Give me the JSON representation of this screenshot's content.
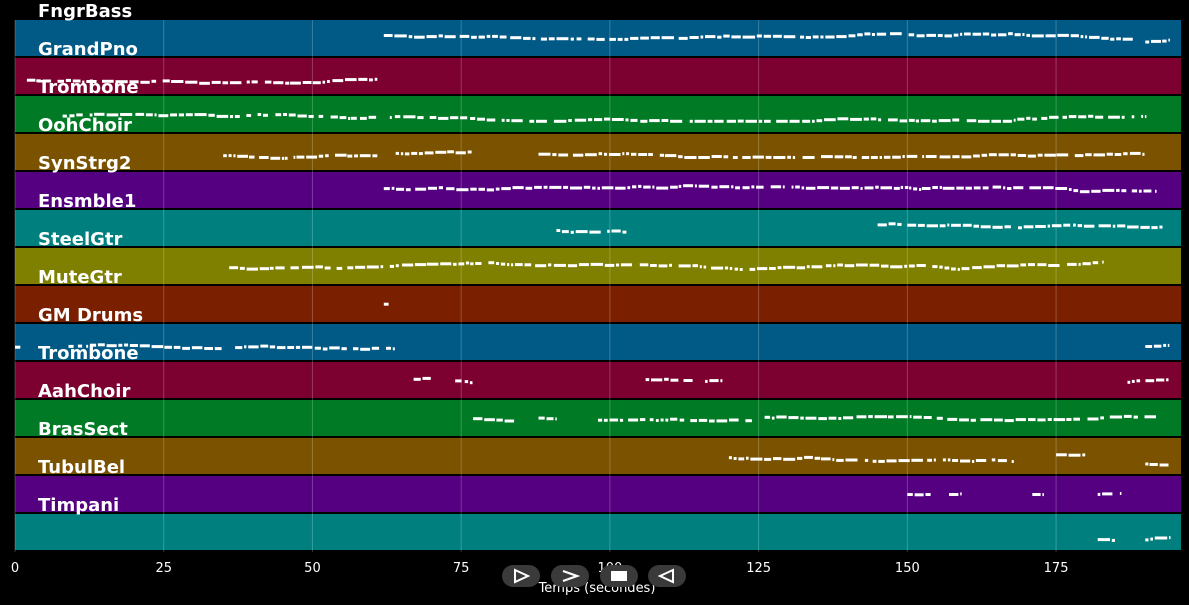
{
  "chart_data": {
    "type": "piano-roll",
    "xlabel": "Temps (secondes)",
    "xlim": [
      0,
      196
    ],
    "xticks": [
      0,
      25,
      50,
      75,
      100,
      125,
      150,
      175
    ],
    "grid": true,
    "tracks": [
      {
        "name": "FngrBass",
        "color": "#005a85",
        "notes": [
          [
            62,
            188,
            0.4
          ],
          [
            190,
            194,
            0.55
          ]
        ]
      },
      {
        "name": "GrandPno",
        "color": "#7c0030",
        "notes": [
          [
            2,
            61,
            0.55
          ]
        ]
      },
      {
        "name": "Trombone",
        "color": "#007a25",
        "notes": [
          [
            8,
            61,
            0.5
          ],
          [
            63,
            190,
            0.55
          ]
        ]
      },
      {
        "name": "OohChoir",
        "color": "#7a5200",
        "notes": [
          [
            35,
            61,
            0.55
          ],
          [
            64,
            77,
            0.5
          ],
          [
            88,
            190,
            0.5
          ]
        ]
      },
      {
        "name": "SynStrg2",
        "color": "#550080",
        "notes": [
          [
            62,
            192,
            0.45
          ]
        ]
      },
      {
        "name": "Ensmble1",
        "color": "#007f7f",
        "notes": [
          [
            91,
            103,
            0.55
          ],
          [
            145,
            193,
            0.35
          ]
        ]
      },
      {
        "name": "SteelGtr",
        "color": "#7f7f00",
        "notes": [
          [
            36,
            62,
            0.5
          ],
          [
            63,
            183,
            0.45
          ]
        ]
      },
      {
        "name": "MuteGtr",
        "color": "#7a2000",
        "notes": [
          [
            62,
            63,
            0.45
          ]
        ]
      },
      {
        "name": "GM Drums",
        "color": "#005a85",
        "notes": [
          [
            0,
            1,
            0.6
          ],
          [
            9,
            35,
            0.6
          ],
          [
            37,
            64,
            0.6
          ],
          [
            190,
            194,
            0.6
          ]
        ]
      },
      {
        "name": "Trombone",
        "color": "#7c0030",
        "notes": [
          [
            67,
            70,
            0.45
          ],
          [
            74,
            77,
            0.5
          ],
          [
            106,
            114,
            0.45
          ],
          [
            116,
            119,
            0.5
          ],
          [
            187,
            194,
            0.5
          ]
        ]
      },
      {
        "name": "AahChoir",
        "color": "#007a25",
        "notes": [
          [
            77,
            84,
            0.5
          ],
          [
            88,
            91,
            0.45
          ],
          [
            98,
            124,
            0.5
          ],
          [
            126,
            192,
            0.45
          ]
        ]
      },
      {
        "name": "BrasSect",
        "color": "#7a5200",
        "notes": [
          [
            120,
            168,
            0.5
          ],
          [
            175,
            180,
            0.45
          ],
          [
            190,
            194,
            0.65
          ]
        ]
      },
      {
        "name": "TubulBel",
        "color": "#550080",
        "notes": [
          [
            150,
            154,
            0.45
          ],
          [
            157,
            159,
            0.45
          ],
          [
            171,
            173,
            0.5
          ],
          [
            182,
            186,
            0.45
          ]
        ]
      },
      {
        "name": "Timpani",
        "color": "#007f7f",
        "notes": [
          [
            182,
            185,
            0.7
          ],
          [
            190,
            194,
            0.7
          ]
        ]
      }
    ]
  },
  "transport": {
    "buttons": [
      {
        "name": "play-outline-button",
        "icon": "play-outline-icon"
      },
      {
        "name": "forward-button",
        "icon": "chevron-right-icon"
      },
      {
        "name": "stop-button",
        "icon": "stop-icon"
      },
      {
        "name": "rewind-button",
        "icon": "triangle-left-icon"
      }
    ]
  }
}
